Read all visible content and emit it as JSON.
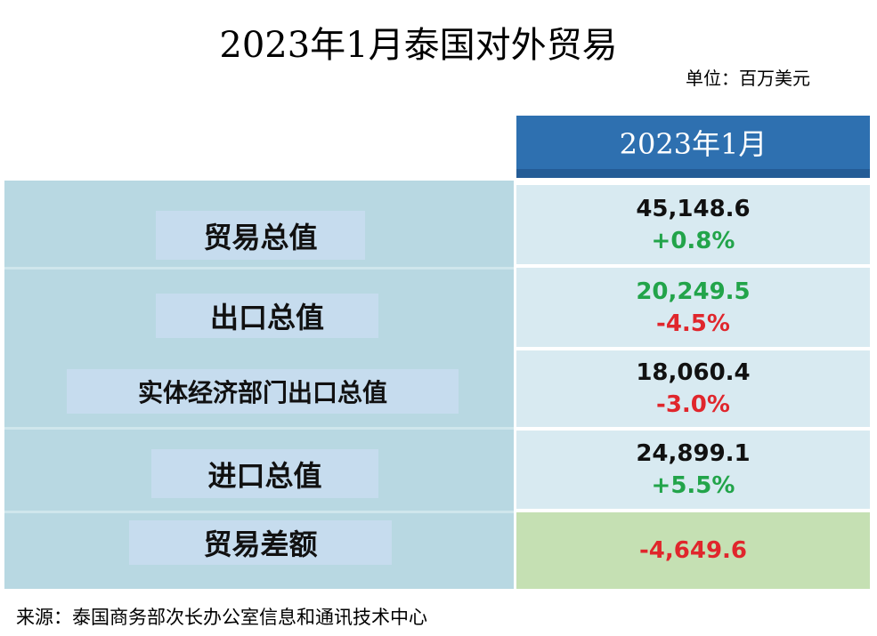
{
  "header": {
    "title": "2023年1月泰国对外贸易",
    "unit": "单位：百万美元"
  },
  "table": {
    "column": "2023年1月",
    "rows": [
      {
        "label": "贸易总值",
        "value": "45,148.6",
        "change": "+0.8%"
      },
      {
        "label": "出口总值",
        "value": "20,249.5",
        "change": "-4.5%"
      },
      {
        "label": "实体经济部门出口总值",
        "value": "18,060.4",
        "change": "-3.0%"
      },
      {
        "label": "进口总值",
        "value": "24,899.1",
        "change": "+5.5%"
      },
      {
        "label": "贸易差额",
        "value": "-4,649.6"
      }
    ]
  },
  "footer": {
    "source": "来源：泰国商务部次长办公室信息和通讯技术中心"
  }
}
